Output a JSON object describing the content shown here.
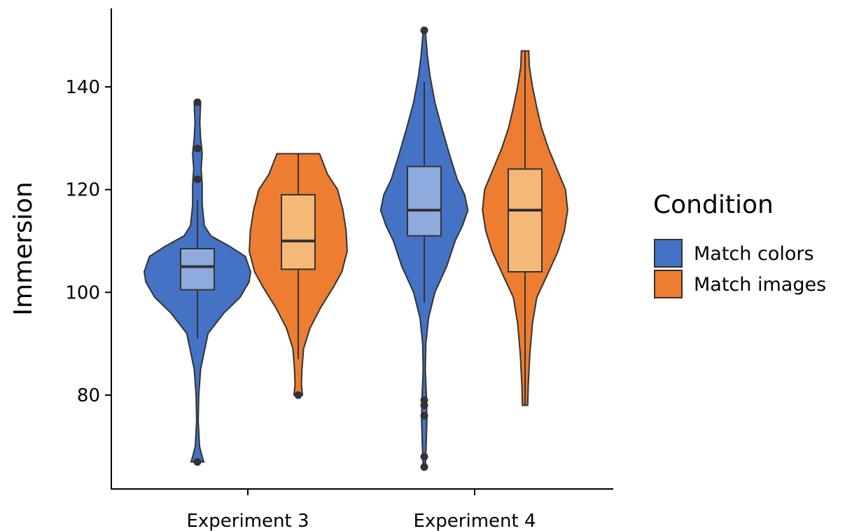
{
  "chart_data": {
    "type": "violin",
    "title": "",
    "xlabel": "",
    "ylabel": "Immersion",
    "ylim": [
      64,
      157
    ],
    "yticks": [
      80,
      100,
      120,
      140
    ],
    "categories": [
      "Experiment 3",
      "Experiment 4"
    ],
    "legend": {
      "title": "Condition",
      "position": "right",
      "entries": [
        {
          "label": "Match colors",
          "color": "#4472C4"
        },
        {
          "label": "Match images",
          "color": "#ED7D31"
        }
      ]
    },
    "grid": false,
    "series": [
      {
        "name": "Match colors",
        "color": "#4472C4",
        "box_color": "#8FAADC",
        "groups": [
          {
            "category": "Experiment 3",
            "min": 67,
            "max": 137,
            "q1": 100.5,
            "median": 105,
            "q3": 108.5,
            "whisker_low": 91,
            "whisker_high": 118,
            "outliers": [
              137,
              128,
              122,
              67
            ],
            "density": [
              [
                67,
                0.12
              ],
              [
                68,
                0.09
              ],
              [
                70,
                0.04
              ],
              [
                75,
                0.015
              ],
              [
                80,
                0.025
              ],
              [
                85,
                0.06
              ],
              [
                88,
                0.12
              ],
              [
                92,
                0.2
              ],
              [
                96,
                0.5
              ],
              [
                99,
                0.8
              ],
              [
                102,
                0.97
              ],
              [
                104,
                1.0
              ],
              [
                107,
                0.9
              ],
              [
                109,
                0.6
              ],
              [
                111,
                0.25
              ],
              [
                113,
                0.13
              ],
              [
                117,
                0.09
              ],
              [
                121,
                0.09
              ],
              [
                124,
                0.07
              ],
              [
                127,
                0.09
              ],
              [
                130,
                0.06
              ],
              [
                133,
                0.045
              ],
              [
                137,
                0.06
              ]
            ]
          },
          {
            "category": "Experiment 4",
            "min": 66,
            "max": 151,
            "q1": 111,
            "median": 116,
            "q3": 124.5,
            "whisker_low": 98,
            "whisker_high": 141,
            "outliers": [
              151,
              79,
              78,
              76,
              68,
              66
            ],
            "density": [
              [
                66,
                0.02
              ],
              [
                70,
                0.035
              ],
              [
                75,
                0.05
              ],
              [
                80,
                0.04
              ],
              [
                85,
                0.02
              ],
              [
                90,
                0.03
              ],
              [
                95,
                0.08
              ],
              [
                100,
                0.2
              ],
              [
                105,
                0.42
              ],
              [
                110,
                0.58
              ],
              [
                113,
                0.72
              ],
              [
                116,
                0.82
              ],
              [
                119,
                0.76
              ],
              [
                122,
                0.62
              ],
              [
                127,
                0.47
              ],
              [
                132,
                0.33
              ],
              [
                137,
                0.2
              ],
              [
                142,
                0.11
              ],
              [
                146,
                0.06
              ],
              [
                151,
                0.02
              ]
            ]
          }
        ]
      },
      {
        "name": "Match images",
        "color": "#ED7D31",
        "box_color": "#F4B877",
        "groups": [
          {
            "category": "Experiment 3",
            "min": 80,
            "max": 127,
            "q1": 104.5,
            "median": 110,
            "q3": 119,
            "whisker_low": 87,
            "whisker_high": 127,
            "outliers": [
              80
            ],
            "density": [
              [
                80,
                0.08
              ],
              [
                82,
                0.06
              ],
              [
                85,
                0.07
              ],
              [
                89,
                0.1
              ],
              [
                93,
                0.22
              ],
              [
                97,
                0.42
              ],
              [
                101,
                0.66
              ],
              [
                104,
                0.82
              ],
              [
                108,
                0.92
              ],
              [
                112,
                0.9
              ],
              [
                116,
                0.84
              ],
              [
                120,
                0.74
              ],
              [
                123,
                0.55
              ],
              [
                127,
                0.4
              ]
            ]
          },
          {
            "category": "Experiment 4",
            "min": 78,
            "max": 147,
            "q1": 104,
            "median": 116,
            "q3": 124,
            "whisker_low": 78,
            "whisker_high": 147,
            "outliers": [],
            "density": [
              [
                78,
                0.05
              ],
              [
                82,
                0.06
              ],
              [
                88,
                0.09
              ],
              [
                94,
                0.14
              ],
              [
                99,
                0.22
              ],
              [
                103,
                0.4
              ],
              [
                108,
                0.62
              ],
              [
                112,
                0.74
              ],
              [
                116,
                0.8
              ],
              [
                120,
                0.76
              ],
              [
                124,
                0.6
              ],
              [
                128,
                0.44
              ],
              [
                132,
                0.31
              ],
              [
                136,
                0.22
              ],
              [
                140,
                0.14
              ],
              [
                144,
                0.08
              ],
              [
                147,
                0.07
              ]
            ]
          }
        ]
      }
    ]
  }
}
